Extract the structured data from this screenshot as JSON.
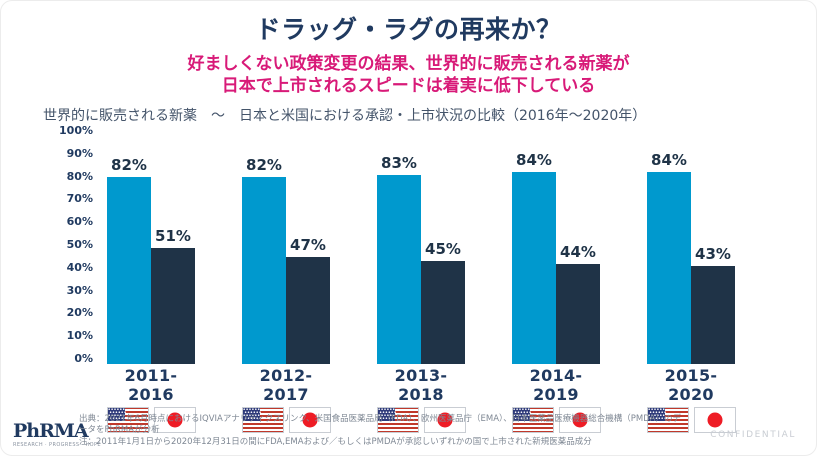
{
  "slide": {
    "title": "ドラッグ・ラグの再来か？",
    "subtitle_line1": "好ましくない政策変更の結果、世界的に販売される新薬が",
    "subtitle_line2": "日本で上市されるスピードは着実に低下している",
    "confidential": "CONFIDENTIAL",
    "logo": {
      "text": "PhRMA",
      "tagline": "RESEARCH · PROGRESS · HOPE"
    },
    "footnotes": [
      "出典：2021年6月時点におけるIQVIAアナリティクスリンク、米国食品医薬品局（FDA）、欧州医薬品庁（EMA）、日本医薬品医療機器総合機構（PMDA）のデータをPhRMAが分析",
      "注：2011年1月1日から2020年12月31日の間にFDA,EMAおよび／もしくはPMDAが承認しいずれかの国で上市された新規医薬品成分"
    ],
    "colors": {
      "title_navy": "#203a60",
      "subtitle_pink": "#d81a78",
      "us_bar_blue": "#0099ce",
      "japan_bar_navy": "#1f3347"
    }
  },
  "chart_data": {
    "type": "bar",
    "title": "世界的に販売される新薬　～　日本と米国における承認・上市状況の比較（2016年～2020年）",
    "categories": [
      "2011-2016",
      "2012-2017",
      "2013-2018",
      "2014-2019",
      "2015-2020"
    ],
    "series": [
      {
        "name": "米国（US）",
        "flag": "us",
        "color": "#0099ce",
        "values": [
          82,
          82,
          83,
          84,
          84
        ]
      },
      {
        "name": "日本（Japan）",
        "flag": "jp",
        "color": "#1f3347",
        "values": [
          51,
          47,
          45,
          44,
          43
        ]
      }
    ],
    "value_suffix": "%",
    "y_ticks": [
      "100%",
      "90%",
      "80%",
      "70%",
      "60%",
      "50%",
      "40%",
      "30%",
      "20%",
      "10%",
      "0%"
    ],
    "ylim": [
      0,
      100
    ],
    "grid": false,
    "legend": "US and Japan flag icons below each category label"
  }
}
